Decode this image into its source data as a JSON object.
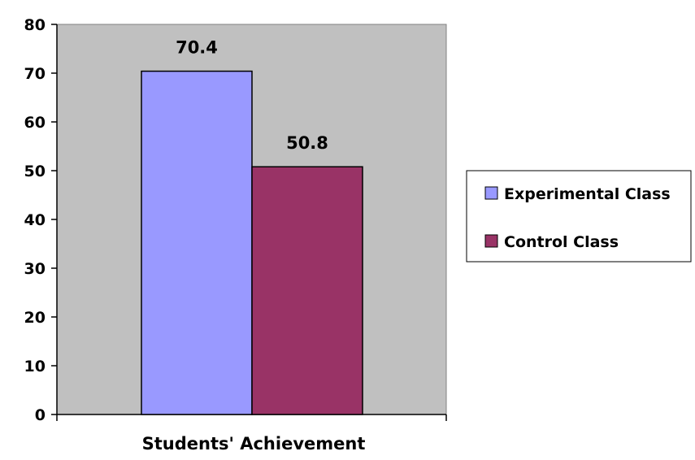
{
  "chart_data": {
    "type": "bar",
    "categories": [
      "Students' Achievement"
    ],
    "series": [
      {
        "name": "Experimental Class",
        "values": [
          70.4
        ],
        "color": "#9999ff",
        "label": "70.4"
      },
      {
        "name": "Control Class",
        "values": [
          50.8
        ],
        "color": "#993366",
        "label": "50.8"
      }
    ],
    "title": "",
    "xlabel": "Students' Achievement",
    "ylabel": "",
    "ylim": [
      0,
      80
    ],
    "yticks": [
      "0",
      "10",
      "20",
      "30",
      "40",
      "50",
      "60",
      "70",
      "80"
    ],
    "grid": false,
    "legend": "right",
    "plot_background": "#c0c0c0"
  }
}
